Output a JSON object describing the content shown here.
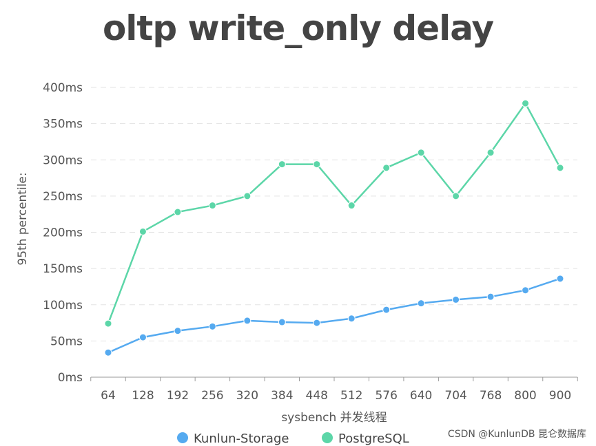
{
  "chart_data": {
    "type": "line",
    "title": "oltp write_only delay",
    "xlabel": "sysbench 并发线程",
    "ylabel": "95th percentile:",
    "categories": [
      "64",
      "128",
      "192",
      "256",
      "320",
      "384",
      "448",
      "512",
      "576",
      "640",
      "704",
      "768",
      "800",
      "900"
    ],
    "yticks": [
      "0ms",
      "50ms",
      "100ms",
      "150ms",
      "200ms",
      "250ms",
      "300ms",
      "350ms",
      "400ms"
    ],
    "ylim": [
      0,
      400
    ],
    "grid": true,
    "legend": "bottom",
    "series": [
      {
        "name": "Kunlun-Storage",
        "color": "#55aaf0",
        "values": [
          34,
          55,
          64,
          70,
          78,
          76,
          75,
          81,
          93,
          102,
          107,
          111,
          120,
          136
        ]
      },
      {
        "name": "PostgreSQL",
        "color": "#5cd6a8",
        "values": [
          74,
          201,
          228,
          237,
          250,
          294,
          294,
          237,
          289,
          310,
          250,
          310,
          378,
          289
        ]
      }
    ]
  },
  "watermark": "CSDN @KunlunDB 昆仑数据库"
}
